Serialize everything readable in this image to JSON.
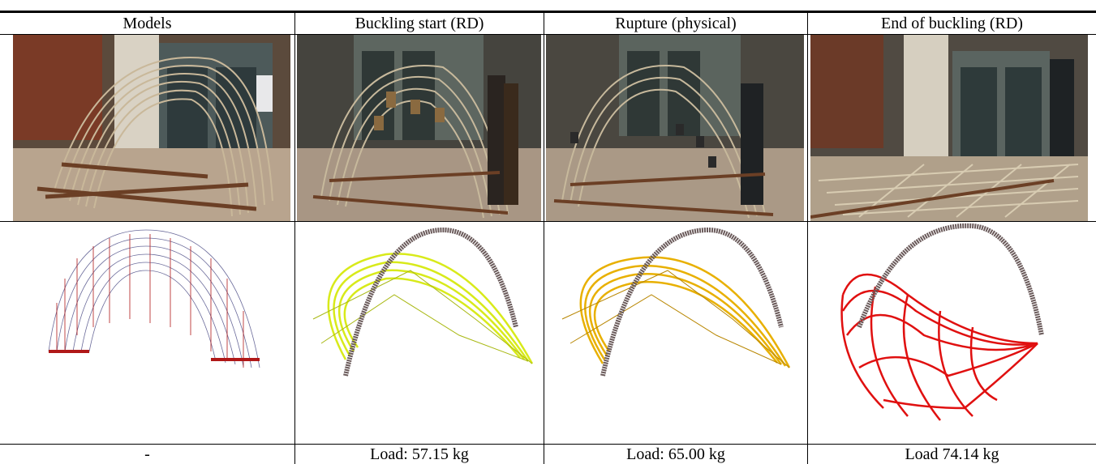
{
  "columns": [
    {
      "header": "Models",
      "caption": "-"
    },
    {
      "header": "Buckling start (RD)",
      "caption": "Load: 57.15 kg"
    },
    {
      "header": "Rupture (physical)",
      "caption": "Load: 65.00 kg"
    },
    {
      "header": "End of buckling (RD)",
      "caption": "Load 74.14 kg"
    }
  ],
  "colors": {
    "render_yellow_green": "#d8ea1a",
    "render_amber": "#e8b000",
    "render_red": "#e01010",
    "model_arrows": "#b01818",
    "model_mesh": "#6a6a9a"
  }
}
